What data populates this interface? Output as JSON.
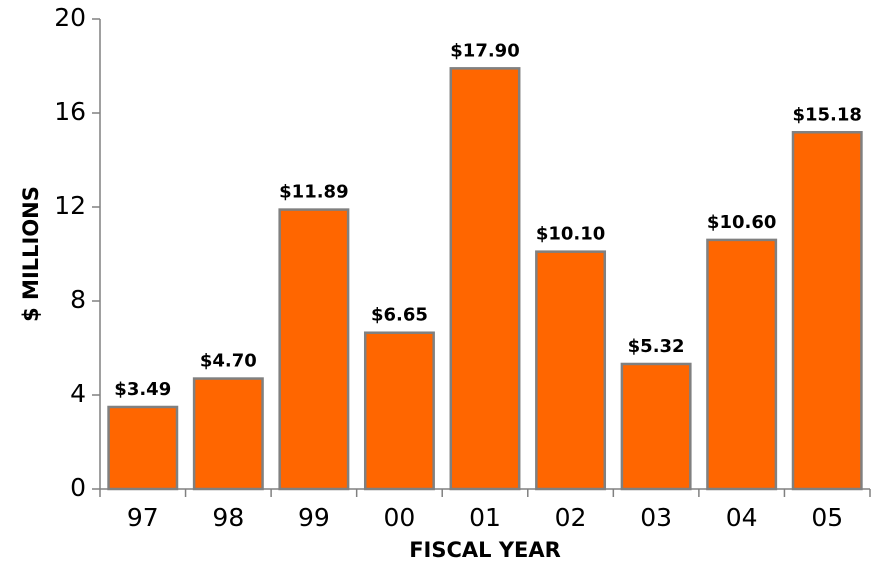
{
  "chart_data": {
    "type": "bar",
    "categories": [
      "97",
      "98",
      "99",
      "00",
      "01",
      "02",
      "03",
      "04",
      "05"
    ],
    "values": [
      3.49,
      4.7,
      11.89,
      6.65,
      17.9,
      10.1,
      5.32,
      10.6,
      15.18
    ],
    "value_labels": [
      "$3.49",
      "$4.70",
      "$11.89",
      "$6.65",
      "$17.90",
      "$10.10",
      "$5.32",
      "$10.60",
      "$15.18"
    ],
    "color": "#ff6600",
    "ylim": [
      0,
      20
    ],
    "yticks": [
      0,
      4,
      8,
      12,
      16,
      20
    ],
    "ylabel": "$ MILLIONS",
    "xlabel": "FISCAL YEAR",
    "grid": false
  }
}
